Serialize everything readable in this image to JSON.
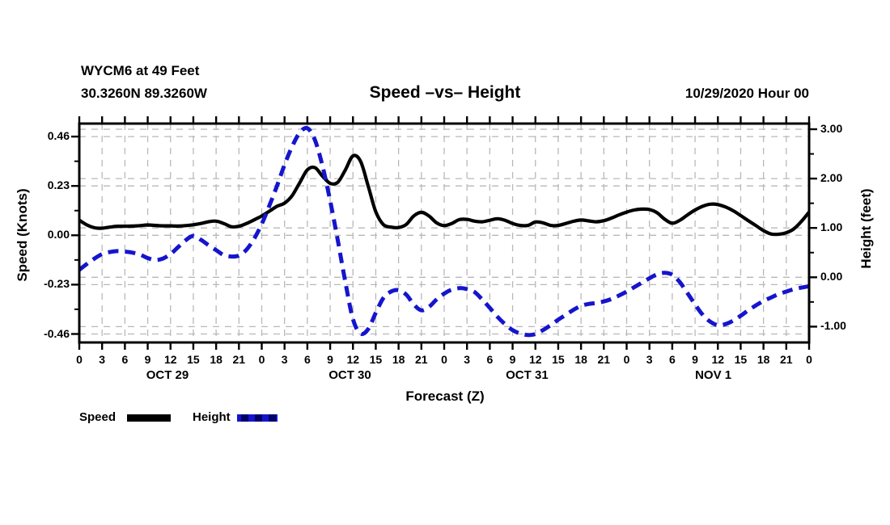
{
  "header": {
    "station_line1": "WYCM6 at 49 Feet",
    "station_line2": "30.3260N 89.3260W",
    "title": "Speed –vs– Height",
    "datetime": "10/29/2020 Hour 00"
  },
  "colors": {
    "speed_line": "#000000",
    "height_line": "#1515cd",
    "grid": "#b8b8b8",
    "frame": "#000000",
    "background": "#ffffff"
  },
  "legend": {
    "items": [
      "Speed",
      "Height"
    ]
  },
  "chart_data": {
    "type": "line",
    "title": "Speed –vs– Height",
    "grid": true,
    "legend_position": "bottom-left",
    "x_axis": {
      "label": "Forecast (Z)",
      "unit": "hours",
      "range": [
        0,
        96
      ],
      "tick_interval_hours": 3,
      "tick_labels": [
        "0",
        "3",
        "6",
        "9",
        "12",
        "15",
        "18",
        "21",
        "0",
        "3",
        "6",
        "9",
        "12",
        "15",
        "18",
        "21",
        "0",
        "3",
        "6",
        "9",
        "12",
        "15",
        "18",
        "21",
        "0",
        "3",
        "6",
        "9",
        "12",
        "15",
        "18",
        "21",
        "0"
      ],
      "day_labels": [
        {
          "label": "OCT 29",
          "center_hour": 11.6
        },
        {
          "label": "OCT 30",
          "center_hour": 35.6
        },
        {
          "label": "OCT 31",
          "center_hour": 58.9
        },
        {
          "label": "NOV 1",
          "center_hour": 83.4
        }
      ]
    },
    "y_left": {
      "label": "Speed (Knots)",
      "range": [
        -0.5,
        0.52
      ],
      "ticks": [
        {
          "label": "0.46",
          "value": 0.46
        },
        {
          "label": "0.23",
          "value": 0.23
        },
        {
          "label": "0.00",
          "value": 0.0
        },
        {
          "label": "-0.23",
          "value": -0.23
        },
        {
          "label": "-0.46",
          "value": -0.46
        }
      ],
      "minor_tick_values": [
        0.345,
        0.115,
        -0.115,
        -0.345
      ]
    },
    "y_right": {
      "label": "Height (feet)",
      "range": [
        -1.31,
        3.13
      ],
      "ticks": [
        {
          "label": "3.00",
          "value": 3.0
        },
        {
          "label": "2.00",
          "value": 2.0
        },
        {
          "label": "1.00",
          "value": 1.0
        },
        {
          "label": "0.00",
          "value": 0.0
        },
        {
          "label": "-1.00",
          "value": -1.0
        }
      ],
      "minor_tick_values": [
        2.5,
        1.5,
        0.5,
        -0.5
      ]
    },
    "series": [
      {
        "name": "Speed",
        "axis": "left",
        "unit": "knots",
        "color": "#000000",
        "style": "solid",
        "x_hours": [
          0,
          1,
          2,
          3,
          4,
          5,
          6,
          7,
          8,
          9,
          10,
          11,
          12,
          13,
          14,
          15,
          16,
          17,
          18,
          19,
          20,
          21,
          22,
          23,
          24,
          25,
          26,
          27,
          28,
          29,
          30,
          31,
          32,
          33,
          34,
          35,
          36,
          37,
          38,
          39,
          40,
          41,
          42,
          43,
          44,
          45,
          46,
          47,
          48,
          49,
          50,
          51,
          52,
          53,
          54,
          55,
          56,
          57,
          58,
          59,
          60,
          61,
          62,
          63,
          64,
          65,
          66,
          67,
          68,
          69,
          70,
          71,
          72,
          73,
          74,
          75,
          76,
          77,
          78,
          79,
          80,
          81,
          82,
          83,
          84,
          85,
          86,
          87,
          88,
          89,
          90,
          91,
          92,
          93,
          94,
          95,
          96
        ],
        "values": [
          0.07,
          0.048,
          0.035,
          0.033,
          0.038,
          0.042,
          0.042,
          0.043,
          0.045,
          0.048,
          0.046,
          0.044,
          0.044,
          0.043,
          0.045,
          0.049,
          0.055,
          0.063,
          0.066,
          0.055,
          0.04,
          0.042,
          0.055,
          0.072,
          0.09,
          0.112,
          0.135,
          0.15,
          0.185,
          0.245,
          0.305,
          0.315,
          0.275,
          0.242,
          0.247,
          0.305,
          0.37,
          0.345,
          0.23,
          0.11,
          0.05,
          0.038,
          0.036,
          0.05,
          0.09,
          0.107,
          0.09,
          0.058,
          0.045,
          0.055,
          0.073,
          0.074,
          0.066,
          0.063,
          0.07,
          0.077,
          0.07,
          0.055,
          0.046,
          0.046,
          0.062,
          0.058,
          0.046,
          0.046,
          0.055,
          0.065,
          0.071,
          0.067,
          0.063,
          0.068,
          0.08,
          0.095,
          0.108,
          0.118,
          0.122,
          0.12,
          0.105,
          0.075,
          0.056,
          0.07,
          0.095,
          0.118,
          0.135,
          0.145,
          0.143,
          0.132,
          0.115,
          0.092,
          0.068,
          0.045,
          0.022,
          0.006,
          0.005,
          0.012,
          0.03,
          0.065,
          0.108
        ]
      },
      {
        "name": "Height",
        "axis": "right",
        "unit": "feet",
        "color": "#1515cd",
        "style": "dashed",
        "x_hours": [
          0,
          1,
          2,
          3,
          4,
          5,
          6,
          7,
          8,
          9,
          10,
          11,
          12,
          13,
          14,
          15,
          16,
          17,
          18,
          19,
          20,
          21,
          22,
          23,
          24,
          25,
          26,
          27,
          28,
          29,
          30,
          31,
          32,
          33,
          34,
          35,
          36,
          37,
          38,
          39,
          40,
          41,
          42,
          43,
          44,
          45,
          46,
          47,
          48,
          49,
          50,
          51,
          52,
          53,
          54,
          55,
          56,
          57,
          58,
          59,
          60,
          61,
          62,
          63,
          64,
          65,
          66,
          67,
          68,
          69,
          70,
          71,
          72,
          73,
          74,
          75,
          76,
          77,
          78,
          79,
          80,
          81,
          82,
          83,
          84,
          85,
          86,
          87,
          88,
          89,
          90,
          91,
          92,
          93,
          94,
          95,
          96
        ],
        "values": [
          0.15,
          0.27,
          0.38,
          0.47,
          0.51,
          0.53,
          0.52,
          0.5,
          0.46,
          0.39,
          0.35,
          0.38,
          0.47,
          0.61,
          0.75,
          0.84,
          0.76,
          0.65,
          0.55,
          0.45,
          0.42,
          0.44,
          0.56,
          0.78,
          1.08,
          1.45,
          1.85,
          2.28,
          2.65,
          2.93,
          3.02,
          2.78,
          2.25,
          1.55,
          0.75,
          -0.1,
          -0.85,
          -1.14,
          -1.05,
          -0.72,
          -0.42,
          -0.29,
          -0.26,
          -0.35,
          -0.55,
          -0.67,
          -0.6,
          -0.45,
          -0.33,
          -0.25,
          -0.22,
          -0.24,
          -0.3,
          -0.45,
          -0.62,
          -0.8,
          -0.95,
          -1.07,
          -1.14,
          -1.17,
          -1.15,
          -1.07,
          -0.97,
          -0.86,
          -0.76,
          -0.66,
          -0.58,
          -0.54,
          -0.52,
          -0.49,
          -0.44,
          -0.37,
          -0.29,
          -0.2,
          -0.11,
          -0.02,
          0.06,
          0.09,
          0.05,
          -0.1,
          -0.32,
          -0.55,
          -0.76,
          -0.9,
          -0.97,
          -0.95,
          -0.88,
          -0.78,
          -0.67,
          -0.57,
          -0.48,
          -0.41,
          -0.34,
          -0.29,
          -0.24,
          -0.21,
          -0.18
        ]
      }
    ]
  }
}
